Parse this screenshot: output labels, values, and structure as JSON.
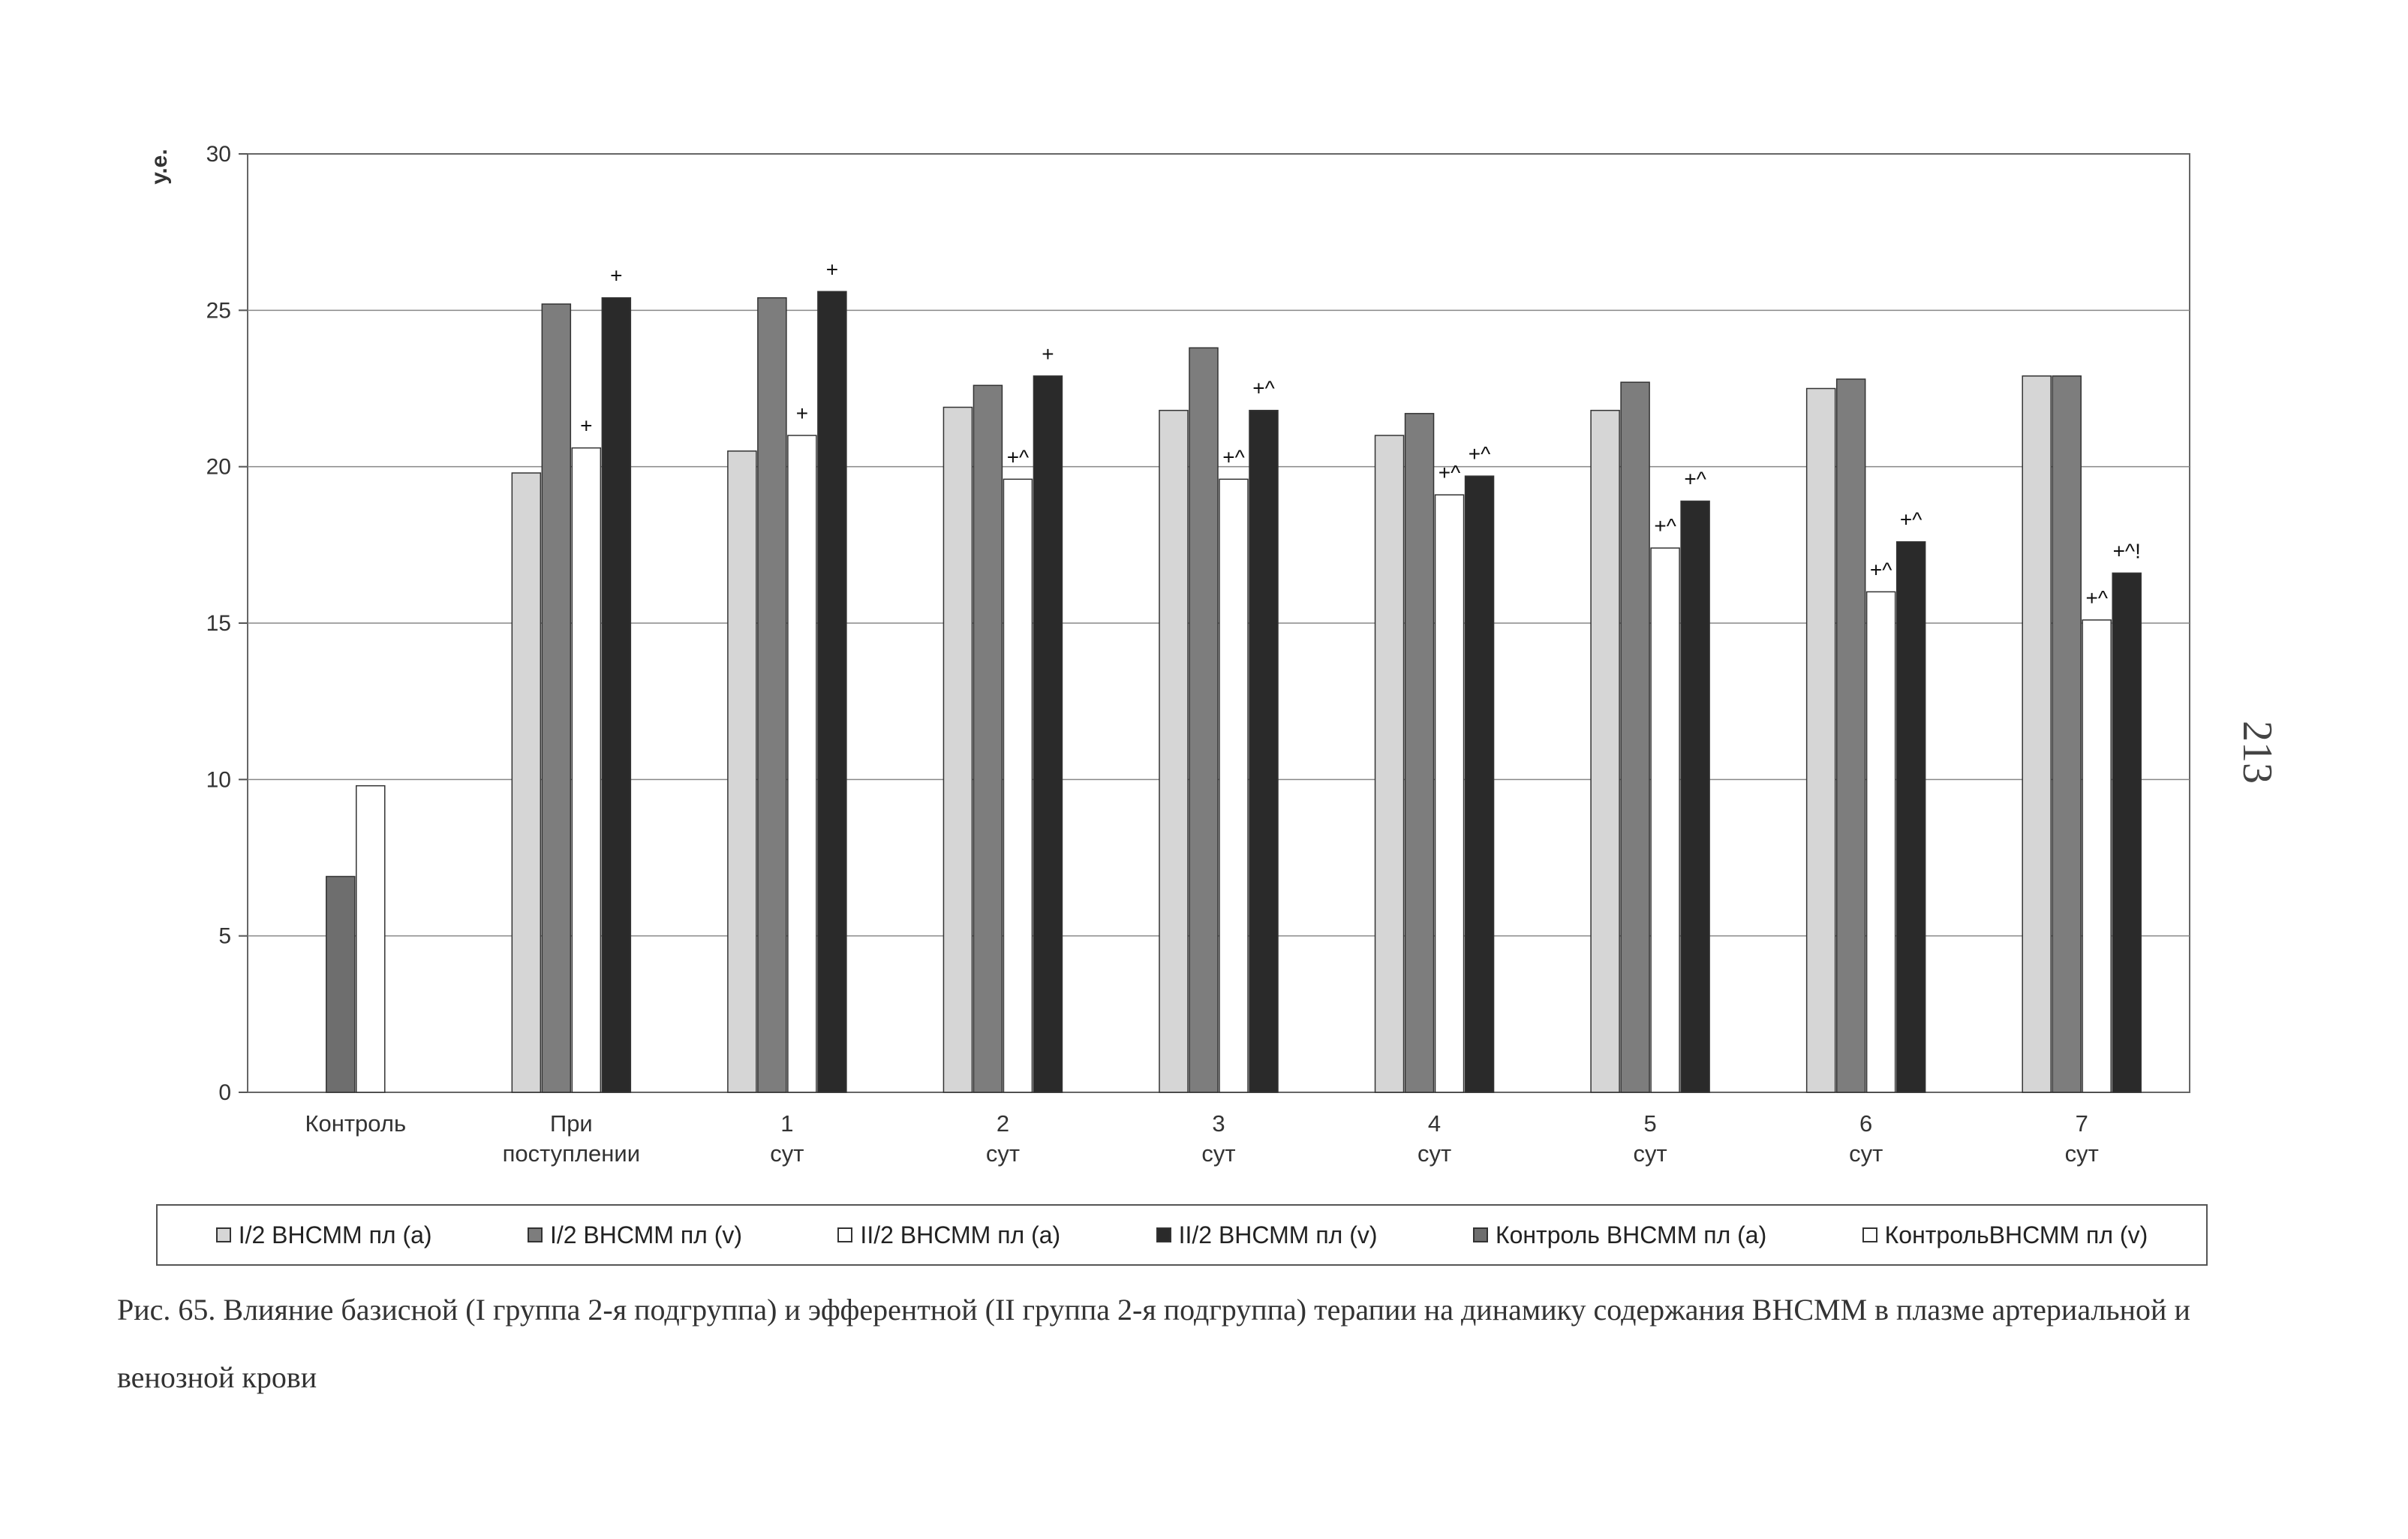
{
  "chart_data": {
    "type": "bar",
    "title": "",
    "ylabel": "у.е.",
    "xlabel": "",
    "ylim": [
      0,
      30
    ],
    "yticks": [
      "0",
      "5",
      "10",
      "15",
      "20",
      "25",
      "30"
    ],
    "grid": true,
    "legend_position": "bottom",
    "categories": [
      "Контроль",
      "При поступлении",
      "1 сут",
      "2 сут",
      "3 сут",
      "4 сут",
      "5 сут",
      "6 сут",
      "7 сут"
    ],
    "series": [
      {
        "name": "I/2 ВНСММ пл (a)",
        "color": "#d6d6d6",
        "values": [
          null,
          19.8,
          20.5,
          21.9,
          21.8,
          21.0,
          21.8,
          22.5,
          22.9
        ]
      },
      {
        "name": "I/2 ВНСММ пл (v)",
        "color": "#7d7d7d",
        "values": [
          null,
          25.2,
          25.4,
          22.6,
          23.8,
          21.7,
          22.7,
          22.8,
          22.9
        ]
      },
      {
        "name": "II/2 ВНСММ пл (a)",
        "color": "#ffffff",
        "values": [
          null,
          20.6,
          21.0,
          19.6,
          19.6,
          19.1,
          17.4,
          16.0,
          15.1
        ]
      },
      {
        "name": "II/2 ВНСММ пл (v)",
        "color": "#2a2a2a",
        "values": [
          null,
          25.4,
          25.6,
          22.9,
          21.8,
          19.7,
          18.9,
          17.6,
          16.6
        ]
      },
      {
        "name": "Контроль ВНСММ пл (a)",
        "color": "#6e6e6e",
        "values": [
          6.9,
          null,
          null,
          null,
          null,
          null,
          null,
          null,
          null
        ]
      },
      {
        "name": "КонтрольВНСММ пл (v)",
        "color": "#ffffff",
        "values": [
          9.8,
          null,
          null,
          null,
          null,
          null,
          null,
          null,
          null
        ]
      }
    ],
    "annotations": [
      {
        "category": "При поступлении",
        "series": "II/2 ВНСММ пл (a)",
        "text": "+"
      },
      {
        "category": "При поступлении",
        "series": "II/2 ВНСММ пл (v)",
        "text": "+"
      },
      {
        "category": "1 сут",
        "series": "II/2 ВНСММ пл (a)",
        "text": "+"
      },
      {
        "category": "1 сут",
        "series": "II/2 ВНСММ пл (v)",
        "text": "+"
      },
      {
        "category": "2 сут",
        "series": "II/2 ВНСММ пл (a)",
        "text": "+^"
      },
      {
        "category": "2 сут",
        "series": "II/2 ВНСММ пл (v)",
        "text": "+"
      },
      {
        "category": "3 сут",
        "series": "II/2 ВНСММ пл (a)",
        "text": "+^"
      },
      {
        "category": "3 сут",
        "series": "II/2 ВНСММ пл (v)",
        "text": "+^"
      },
      {
        "category": "4 сут",
        "series": "II/2 ВНСММ пл (a)",
        "text": "+^"
      },
      {
        "category": "4 сут",
        "series": "II/2 ВНСММ пл (v)",
        "text": "+^"
      },
      {
        "category": "5 сут",
        "series": "II/2 ВНСММ пл (a)",
        "text": "+^"
      },
      {
        "category": "5 сут",
        "series": "II/2 ВНСММ пл (v)",
        "text": "+^"
      },
      {
        "category": "6 сут",
        "series": "II/2 ВНСММ пл (a)",
        "text": "+^"
      },
      {
        "category": "6 сут",
        "series": "II/2 ВНСММ пл (v)",
        "text": "+^"
      },
      {
        "category": "7 сут",
        "series": "II/2 ВНСММ пл (a)",
        "text": "+^"
      },
      {
        "category": "7 сут",
        "series": "II/2 ВНСММ пл (v)",
        "text": "+^!"
      }
    ]
  },
  "caption": "Рис. 65. Влияние базисной (I группа 2-я подгруппа) и эфферентной (II группа 2-я подгруппа) терапии на динамику содержания ВНСММ в плазме артериальной и венозной крови",
  "page_number": "213"
}
